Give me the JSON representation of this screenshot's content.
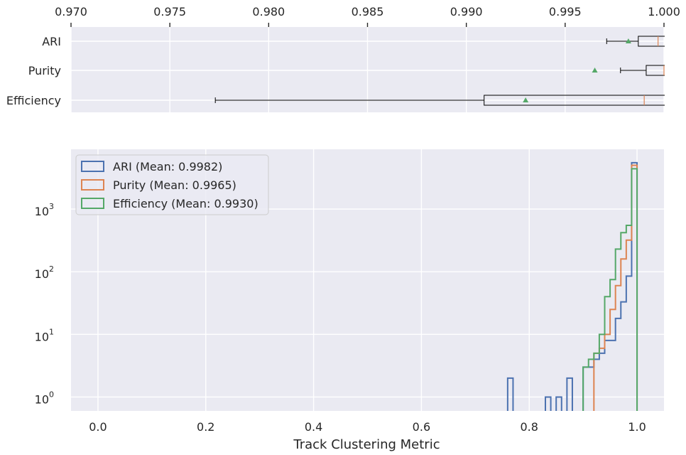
{
  "colors": {
    "panel_bg": "#eaeaf2",
    "grid": "#ffffff",
    "ari": "#4c72b0",
    "purity": "#dd8452",
    "efficiency": "#55a868",
    "mean_marker": "#55a868",
    "median": "#dd8452",
    "box": "#000000"
  },
  "chart_data": [
    {
      "type": "box",
      "orientation": "horizontal",
      "x_axis_position": "top",
      "xlim": [
        0.97,
        1.0
      ],
      "xticks": [
        "0.970",
        "0.975",
        "0.980",
        "0.985",
        "0.990",
        "0.995",
        "1.000"
      ],
      "xtick_values": [
        0.97,
        0.975,
        0.98,
        0.985,
        0.99,
        0.995,
        1.0
      ],
      "categories": [
        "ARI",
        "Purity",
        "Efficiency"
      ],
      "boxes": [
        {
          "name": "ARI",
          "whisker_low": 0.9971,
          "q1": 0.9987,
          "median": 0.9997,
          "q3": 1.0,
          "whisker_high": 1.0,
          "mean": 0.9982
        },
        {
          "name": "Purity",
          "whisker_low": 0.9978,
          "q1": 0.9991,
          "median": 1.0,
          "q3": 1.0,
          "whisker_high": 1.0,
          "mean": 0.9965
        },
        {
          "name": "Efficiency",
          "whisker_low": 0.9773,
          "q1": 0.9909,
          "median": 0.999,
          "q3": 1.0,
          "whisker_high": 1.0,
          "mean": 0.993
        }
      ]
    },
    {
      "type": "histogram",
      "histtype": "step",
      "y_scale": "log",
      "xlim": [
        -0.05,
        1.05
      ],
      "xticks": [
        "0.0",
        "0.2",
        "0.4",
        "0.6",
        "0.8",
        "1.0"
      ],
      "xtick_values": [
        0.0,
        0.2,
        0.4,
        0.6,
        0.8,
        1.0
      ],
      "yticks": [
        {
          "base": "10",
          "exp": "0",
          "value": 1
        },
        {
          "base": "10",
          "exp": "1",
          "value": 10
        },
        {
          "base": "10",
          "exp": "2",
          "value": 100
        },
        {
          "base": "10",
          "exp": "3",
          "value": 1000
        }
      ],
      "xlabel": "Track Clustering Metric",
      "legend_position": "top-left",
      "grid": true,
      "bin_width": 0.01,
      "series": [
        {
          "name": "ARI (Mean: 0.9982)",
          "color_key": "ari",
          "bins": [
            {
              "x": 0.76,
              "count": 2
            },
            {
              "x": 0.83,
              "count": 1
            },
            {
              "x": 0.85,
              "count": 1
            },
            {
              "x": 0.87,
              "count": 2
            },
            {
              "x": 0.9,
              "count": 3
            },
            {
              "x": 0.91,
              "count": 3
            },
            {
              "x": 0.92,
              "count": 4
            },
            {
              "x": 0.93,
              "count": 5
            },
            {
              "x": 0.94,
              "count": 8
            },
            {
              "x": 0.95,
              "count": 8
            },
            {
              "x": 0.96,
              "count": 18
            },
            {
              "x": 0.97,
              "count": 33
            },
            {
              "x": 0.98,
              "count": 85
            },
            {
              "x": 0.99,
              "count": 5500
            }
          ]
        },
        {
          "name": "Purity (Mean: 0.9965)",
          "color_key": "purity",
          "bins": [
            {
              "x": 0.92,
              "count": 5
            },
            {
              "x": 0.93,
              "count": 6
            },
            {
              "x": 0.94,
              "count": 10
            },
            {
              "x": 0.95,
              "count": 25
            },
            {
              "x": 0.96,
              "count": 60
            },
            {
              "x": 0.97,
              "count": 160
            },
            {
              "x": 0.98,
              "count": 320
            },
            {
              "x": 0.99,
              "count": 5000
            }
          ]
        },
        {
          "name": "Efficiency (Mean: 0.9930)",
          "color_key": "efficiency",
          "bins": [
            {
              "x": 0.9,
              "count": 3
            },
            {
              "x": 0.91,
              "count": 4
            },
            {
              "x": 0.92,
              "count": 5
            },
            {
              "x": 0.93,
              "count": 10
            },
            {
              "x": 0.94,
              "count": 40
            },
            {
              "x": 0.95,
              "count": 75
            },
            {
              "x": 0.96,
              "count": 230
            },
            {
              "x": 0.97,
              "count": 420
            },
            {
              "x": 0.98,
              "count": 550
            },
            {
              "x": 0.99,
              "count": 4400
            }
          ]
        }
      ]
    }
  ]
}
